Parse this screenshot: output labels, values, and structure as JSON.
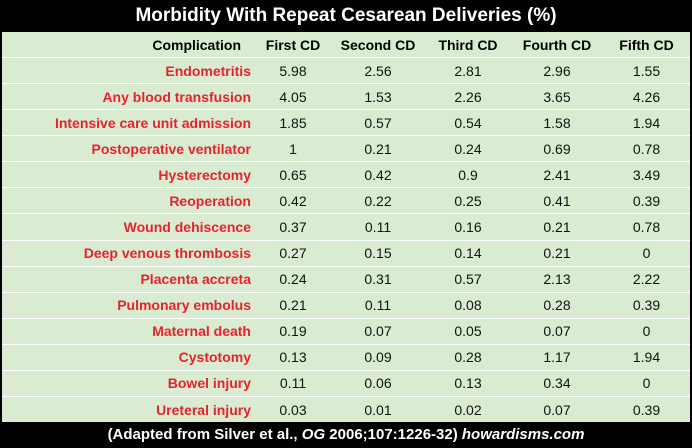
{
  "title": "Morbidity With Repeat Cesarean Deliveries (%)",
  "columns": [
    "Complication",
    "First CD",
    "Second CD",
    "Third CD",
    "Fourth CD",
    "Fifth CD"
  ],
  "rows": [
    {
      "label": "Endometritis",
      "values": [
        "5.98",
        "2.56",
        "2.81",
        "2.96",
        "1.55"
      ]
    },
    {
      "label": "Any blood transfusion",
      "values": [
        "4.05",
        "1.53",
        "2.26",
        "3.65",
        "4.26"
      ]
    },
    {
      "label": "Intensive care unit admission",
      "values": [
        "1.85",
        "0.57",
        "0.54",
        "1.58",
        "1.94"
      ]
    },
    {
      "label": "Postoperative ventilator",
      "values": [
        "1",
        "0.21",
        "0.24",
        "0.69",
        "0.78"
      ]
    },
    {
      "label": "Hysterectomy",
      "values": [
        "0.65",
        "0.42",
        "0.9",
        "2.41",
        "3.49"
      ]
    },
    {
      "label": "Reoperation",
      "values": [
        "0.42",
        "0.22",
        "0.25",
        "0.41",
        "0.39"
      ]
    },
    {
      "label": "Wound dehiscence",
      "values": [
        "0.37",
        "0.11",
        "0.16",
        "0.21",
        "0.78"
      ]
    },
    {
      "label": "Deep venous thrombosis",
      "values": [
        "0.27",
        "0.15",
        "0.14",
        "0.21",
        "0"
      ]
    },
    {
      "label": "Placenta accreta",
      "values": [
        "0.24",
        "0.31",
        "0.57",
        "2.13",
        "2.22"
      ]
    },
    {
      "label": "Pulmonary embolus",
      "values": [
        "0.21",
        "0.11",
        "0.08",
        "0.28",
        "0.39"
      ]
    },
    {
      "label": "Maternal death",
      "values": [
        "0.19",
        "0.07",
        "0.05",
        "0.07",
        "0"
      ]
    },
    {
      "label": "Cystotomy",
      "values": [
        "0.13",
        "0.09",
        "0.28",
        "1.17",
        "1.94"
      ]
    },
    {
      "label": "Bowel injury",
      "values": [
        "0.11",
        "0.06",
        "0.13",
        "0.34",
        "0"
      ]
    },
    {
      "label": "Ureteral injury",
      "values": [
        "0.03",
        "0.01",
        "0.02",
        "0.07",
        "0.39"
      ]
    }
  ],
  "footer": {
    "prefix": "(Adapted from Silver et al., ",
    "journal": "OG",
    "citation": " 2006;107:1226-32) ",
    "site": "howardisms.com"
  },
  "colors": {
    "background": "#000000",
    "table_fill": "#d9ecd2",
    "label_text": "#e8222b",
    "title_text": "#ffffff"
  }
}
